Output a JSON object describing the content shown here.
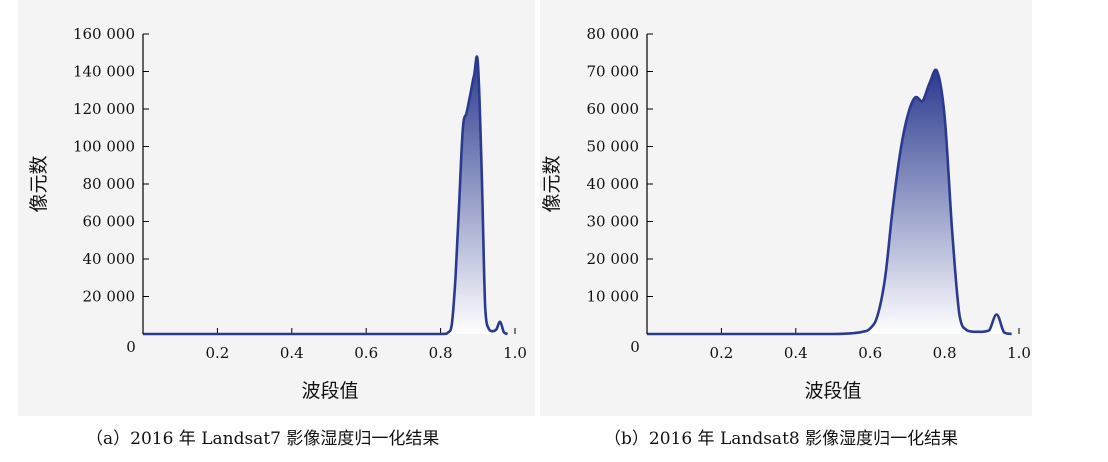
{
  "captions": {
    "a": "（a）2016 年 Landsat7 影像湿度归一化结果",
    "b": "（b）2016 年 Landsat8 影像湿度归一化结果"
  },
  "colors": {
    "line": "#2b3a8f",
    "fill_top": "#2b3a8f",
    "fill_bottom": "#ffffff",
    "axis": "#000000"
  },
  "chart_data": [
    {
      "type": "area",
      "xlabel": "波段值",
      "ylabel": "像元数",
      "xlim": [
        0,
        1.0
      ],
      "ylim": [
        0,
        160000
      ],
      "x_ticks": [
        0.2,
        0.4,
        0.6,
        0.8,
        1.0
      ],
      "x_tick_labels": [
        "0.2",
        "0.4",
        "0.6",
        "0.8",
        "1.0"
      ],
      "y_ticks": [
        0,
        20000,
        40000,
        60000,
        80000,
        100000,
        120000,
        140000,
        160000
      ],
      "y_tick_labels": [
        "0",
        "20 000",
        "40 000",
        "60 000",
        "80 000",
        "100 000",
        "120 000",
        "140 000",
        "160 000"
      ],
      "x": [
        0.0,
        0.1,
        0.2,
        0.3,
        0.4,
        0.5,
        0.6,
        0.7,
        0.8,
        0.82,
        0.83,
        0.84,
        0.85,
        0.86,
        0.87,
        0.88,
        0.89,
        0.9,
        0.91,
        0.92,
        0.93,
        0.94,
        0.95,
        0.96,
        0.97,
        0.98
      ],
      "values": [
        0,
        0,
        0,
        0,
        0,
        0,
        0,
        0,
        0,
        800,
        5000,
        30000,
        70000,
        110000,
        118000,
        128000,
        138000,
        145000,
        90000,
        14000,
        2500,
        1500,
        2500,
        6500,
        1000,
        0
      ]
    },
    {
      "type": "area",
      "xlabel": "波段值",
      "ylabel": "像元数",
      "xlim": [
        0,
        1.0
      ],
      "ylim": [
        0,
        80000
      ],
      "x_ticks": [
        0.2,
        0.4,
        0.6,
        0.8,
        1.0
      ],
      "x_tick_labels": [
        "0.2",
        "0.4",
        "0.6",
        "0.8",
        "1.0"
      ],
      "y_ticks": [
        0,
        10000,
        20000,
        30000,
        40000,
        50000,
        60000,
        70000,
        80000
      ],
      "y_tick_labels": [
        "0",
        "10 000",
        "20 000",
        "30 000",
        "40 000",
        "50 000",
        "60 000",
        "70 000",
        "80 000"
      ],
      "x": [
        0.0,
        0.1,
        0.2,
        0.3,
        0.4,
        0.5,
        0.55,
        0.58,
        0.6,
        0.62,
        0.64,
        0.66,
        0.68,
        0.7,
        0.72,
        0.74,
        0.76,
        0.78,
        0.8,
        0.82,
        0.84,
        0.86,
        0.88,
        0.9,
        0.92,
        0.94,
        0.96,
        0.98
      ],
      "values": [
        0,
        0,
        0,
        0,
        0,
        0,
        200,
        600,
        1500,
        5000,
        15000,
        33000,
        48000,
        58000,
        63000,
        62000,
        67000,
        70000,
        58000,
        28000,
        5000,
        1000,
        600,
        600,
        1000,
        5200,
        400,
        0
      ]
    }
  ]
}
